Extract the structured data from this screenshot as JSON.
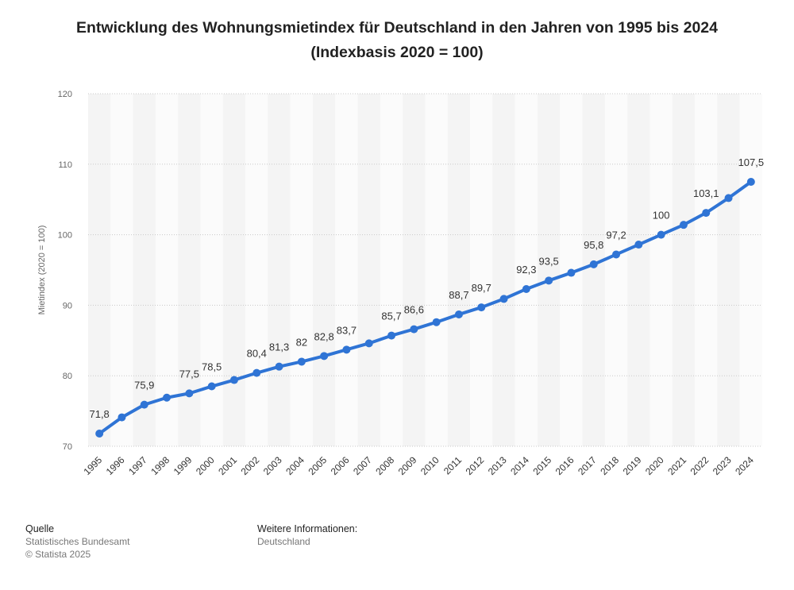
{
  "title": "Entwicklung des Wohnungsmietindex für Deutschland in den Jahren von 1995 bis 2024 (Indexbasis 2020 = 100)",
  "chart_data": {
    "type": "line",
    "title": "Entwicklung des Wohnungsmietindex für Deutschland in den Jahren von 1995 bis 2024 (Indexbasis 2020 = 100)",
    "xlabel": "",
    "ylabel": "Mietindex (2020 = 100)",
    "ylim": [
      70,
      120
    ],
    "yticks": [
      70,
      80,
      90,
      100,
      110,
      120
    ],
    "grid": true,
    "legend": "none",
    "line_color": "#2f74d5",
    "categories": [
      "1995",
      "1996",
      "1997",
      "1998",
      "1999",
      "2000",
      "2001",
      "2002",
      "2003",
      "2004",
      "2005",
      "2006",
      "2007",
      "2008",
      "2009",
      "2010",
      "2011",
      "2012",
      "2013",
      "2014",
      "2015",
      "2016",
      "2017",
      "2018",
      "2019",
      "2020",
      "2021",
      "2022",
      "2023",
      "2024"
    ],
    "values": [
      71.8,
      74.1,
      75.9,
      76.9,
      77.5,
      78.5,
      79.4,
      80.4,
      81.3,
      82,
      82.8,
      83.7,
      84.6,
      85.7,
      86.6,
      87.6,
      88.7,
      89.7,
      90.9,
      92.3,
      93.5,
      94.6,
      95.8,
      97.2,
      98.6,
      100,
      101.4,
      103.1,
      105.2,
      107.5
    ],
    "data_labels": [
      "71,8",
      null,
      "75,9",
      null,
      "77,5",
      "78,5",
      null,
      "80,4",
      "81,3",
      "82",
      "82,8",
      "83,7",
      null,
      "85,7",
      "86,6",
      null,
      "88,7",
      "89,7",
      null,
      "92,3",
      "93,5",
      null,
      "95,8",
      "97,2",
      null,
      "100",
      null,
      "103,1",
      null,
      "107,5"
    ]
  },
  "footer": {
    "source_heading": "Quelle",
    "source_lines": [
      "Statistisches Bundesamt",
      "© Statista 2025"
    ],
    "info_heading": "Weitere Informationen:",
    "info_lines": [
      "Deutschland"
    ]
  }
}
